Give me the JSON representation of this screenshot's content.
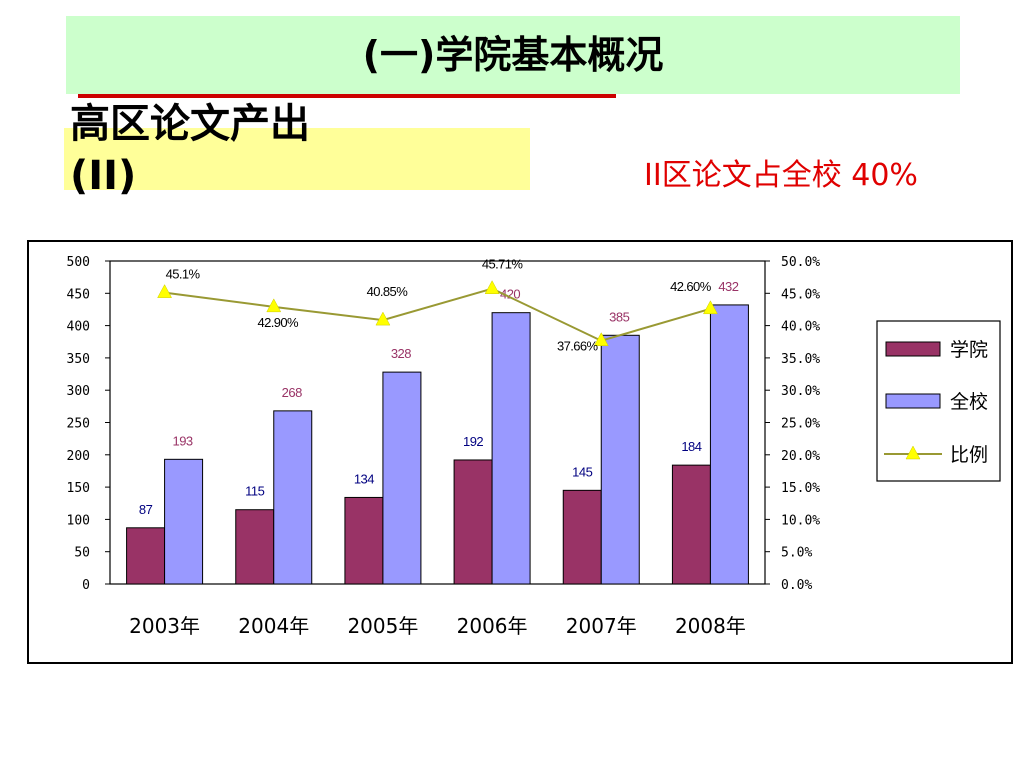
{
  "header": {
    "title": "(一)学院基本概况",
    "subtitle_line1": "高区论文产出",
    "subtitle_line2": "(II)",
    "note": "II区论文占全校 40%"
  },
  "colors": {
    "college": "#993366",
    "school": "#9999ff",
    "ratio_line": "#999933",
    "ratio_marker": "#ffff00",
    "college_label": "#000080",
    "school_label": "#993366"
  },
  "chart_data": {
    "type": "bar",
    "categories": [
      "2003年",
      "2004年",
      "2005年",
      "2006年",
      "2007年",
      "2008年"
    ],
    "series": [
      {
        "name": "学院",
        "type": "bar",
        "values": [
          87,
          115,
          134,
          192,
          145,
          184
        ],
        "labels": [
          "87",
          "115",
          "134",
          "192",
          "145",
          "184"
        ]
      },
      {
        "name": "全校",
        "type": "bar",
        "values": [
          193,
          268,
          328,
          420,
          385,
          432
        ],
        "labels": [
          "193",
          "268",
          "328",
          "420",
          "385",
          "432"
        ]
      },
      {
        "name": "比例",
        "type": "line",
        "axis": "right",
        "values": [
          45.1,
          42.9,
          40.85,
          45.71,
          37.66,
          42.6
        ],
        "labels": [
          "45.1%",
          "42.90%",
          "40.85%",
          "45.71%",
          "37.66%",
          "42.60%"
        ]
      }
    ],
    "ylim": [
      0,
      500
    ],
    "y_ticks": [
      "500",
      "450",
      "400",
      "350",
      "300",
      "250",
      "200",
      "150",
      "100",
      "50",
      "0"
    ],
    "y2lim": [
      0,
      50
    ],
    "y2_ticks": [
      "50.0%",
      "45.0%",
      "40.0%",
      "35.0%",
      "30.0%",
      "25.0%",
      "20.0%",
      "15.0%",
      "10.0%",
      "5.0%",
      "0.0%"
    ],
    "grid": false,
    "legend": "right"
  }
}
